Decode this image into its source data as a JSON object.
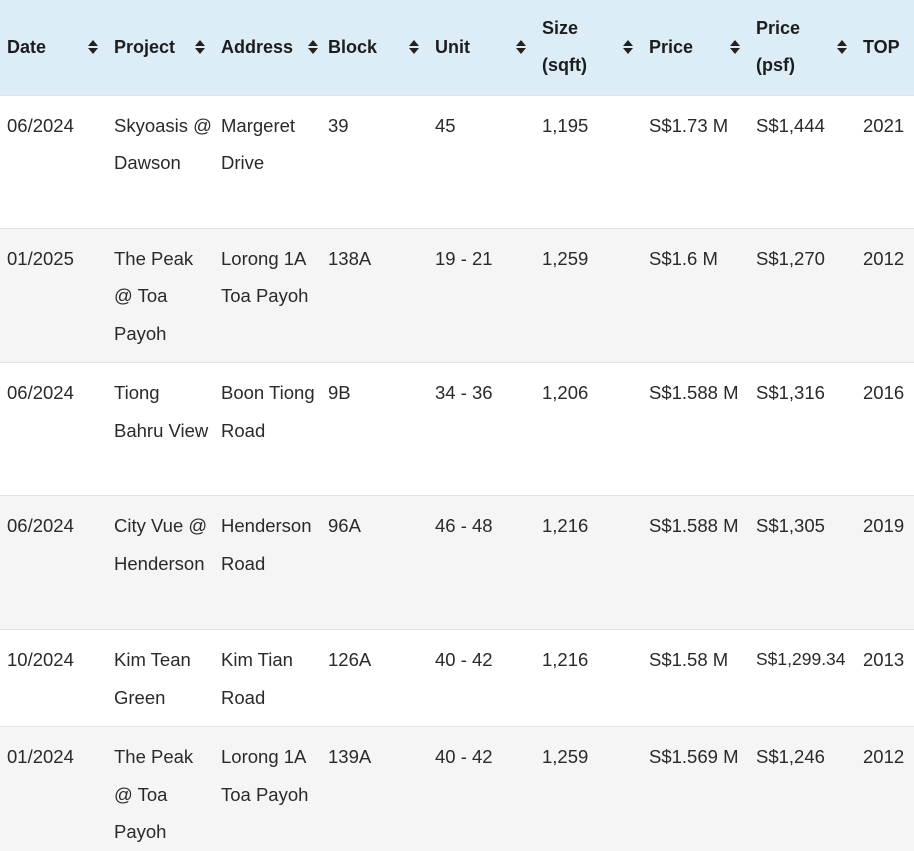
{
  "columns": [
    {
      "label": "Date",
      "sortable": true
    },
    {
      "label": "Project",
      "sortable": true
    },
    {
      "label": "Address",
      "sortable": true
    },
    {
      "label": "Block",
      "sortable": true
    },
    {
      "label": "Unit",
      "sortable": true
    },
    {
      "label": "Size (sqft)",
      "sortable": true
    },
    {
      "label": "Price",
      "sortable": true
    },
    {
      "label": "Price (psf)",
      "sortable": true
    },
    {
      "label": "TOP",
      "sortable": false
    }
  ],
  "rows": [
    {
      "date": "06/2024",
      "project": "Skyoasis @ Dawson",
      "address": "Margeret Drive",
      "block": "39",
      "unit": "45",
      "size": "1,195",
      "price": "S$1.73 M",
      "psf": "S$1,444",
      "top": "2021"
    },
    {
      "date": "01/2025",
      "project": "The Peak @ Toa Payoh",
      "address": "Lorong 1A Toa Payoh",
      "block": "138A",
      "unit": "19 - 21",
      "size": "1,259",
      "price": "S$1.6 M",
      "psf": "S$1,270",
      "top": "2012"
    },
    {
      "date": "06/2024",
      "project": "Tiong Bahru View",
      "address": "Boon Tiong Road",
      "block": "9B",
      "unit": "34 - 36",
      "size": "1,206",
      "price": "S$1.588 M",
      "psf": "S$1,316",
      "top": "2016"
    },
    {
      "date": "06/2024",
      "project": "City Vue @ Henderson",
      "address": "Henderson Road",
      "block": "96A",
      "unit": "46 - 48",
      "size": "1,216",
      "price": "S$1.588 M",
      "psf": "S$1,305",
      "top": "2019"
    },
    {
      "date": "10/2024",
      "project": "Kim Tean Green",
      "address": "Kim Tian Road",
      "block": "126A",
      "unit": "40 - 42",
      "size": "1,216",
      "price": "S$1.58 M",
      "psf": "S$1,299.34",
      "top": "2013"
    },
    {
      "date": "01/2024",
      "project": "The Peak @ Toa Payoh",
      "address": "Lorong 1A Toa Payoh",
      "block": "139A",
      "unit": "40 - 42",
      "size": "1,259",
      "price": "S$1.569 M",
      "psf": "S$1,246",
      "top": "2012"
    }
  ],
  "colors": {
    "header_bg": "#dcedf8",
    "row_alt_bg": "#f5f5f5",
    "row_border": "#e3e3e3"
  },
  "icons": {
    "sort": "sort-arrows-icon"
  }
}
